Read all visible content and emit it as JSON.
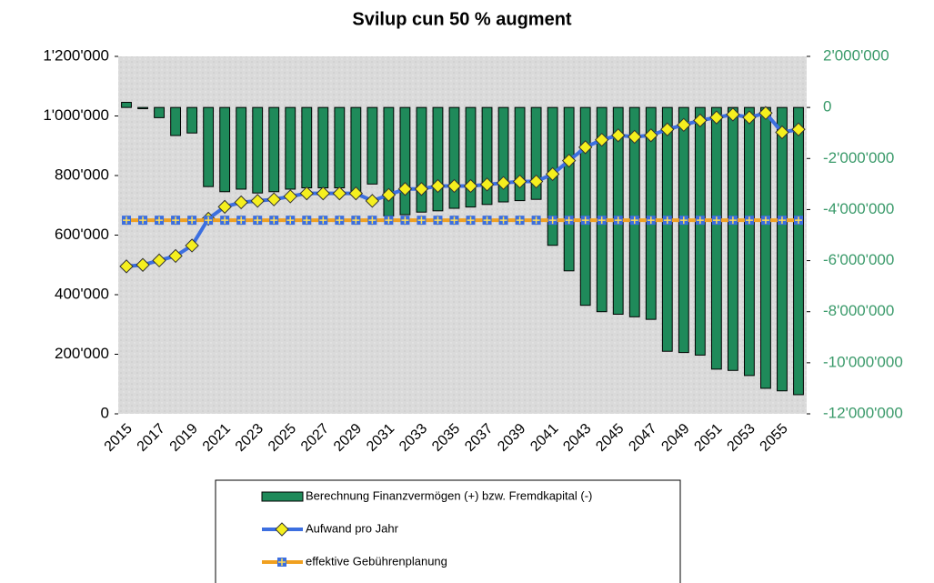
{
  "chart_data": {
    "type": "combo",
    "title": "Svilup cun 50 % augment",
    "categories": [
      "2015",
      null,
      "2017",
      null,
      "2019",
      null,
      "2021",
      null,
      "2023",
      null,
      "2025",
      null,
      "2027",
      null,
      "2029",
      null,
      "2031",
      null,
      "2033",
      null,
      "2035",
      null,
      "2037",
      null,
      "2039",
      null,
      "2041",
      null,
      "2043",
      null,
      "2045",
      null,
      "2047",
      null,
      "2049",
      null,
      "2051",
      null,
      "2053",
      null,
      "2055",
      null
    ],
    "ylim": [
      0,
      1200000
    ],
    "yticks": [
      0,
      {
        "value": 200000,
        "label": "200'000"
      },
      {
        "value": 400000,
        "label": "400'000"
      },
      {
        "value": 600000,
        "label": "600'000"
      },
      {
        "value": 800000,
        "label": "800'000"
      },
      {
        "value": 1000000,
        "label": "1'000'000"
      },
      {
        "value": 1200000,
        "label": "1'200'000"
      }
    ],
    "y2lim": [
      -12000000,
      2000000
    ],
    "y2ticks": [
      {
        "value": -12000000,
        "label": "-12'000'000"
      },
      {
        "value": -10000000,
        "label": "-10'000'000"
      },
      {
        "value": -8000000,
        "label": "-8'000'000"
      },
      {
        "value": -6000000,
        "label": "-6'000'000"
      },
      {
        "value": -4000000,
        "label": "-4'000'000"
      },
      {
        "value": -2000000,
        "label": "-2'000'000"
      },
      0,
      {
        "value": 2000000,
        "label": "2'000'000"
      }
    ],
    "legend": "bottom",
    "series": [
      {
        "name": "Berechnung Finanzvermögen (+) bzw. Fremdkapital (-)",
        "type": "bar",
        "axis": "y2",
        "color": "#1f8a5a",
        "values": [
          200000,
          -50000,
          -400000,
          -1100000,
          -1000000,
          -3100000,
          -3300000,
          -3200000,
          -3350000,
          -3300000,
          -3200000,
          -3150000,
          -3150000,
          -3150000,
          -3350000,
          -3000000,
          -4250000,
          -4200000,
          -4100000,
          -4050000,
          -3950000,
          -3900000,
          -3800000,
          -3700000,
          -3650000,
          -3600000,
          -5400000,
          -6400000,
          -7750000,
          -8000000,
          -8100000,
          -8200000,
          -8300000,
          -9550000,
          -9600000,
          -9700000,
          -10250000,
          -10300000,
          -10500000,
          -11000000,
          -11100000,
          -11250000
        ]
      },
      {
        "name": "Aufwand pro Jahr",
        "type": "line",
        "color": "#3c6fe0",
        "marker_color": "#f5ef1e",
        "values": [
          495000,
          500000,
          515000,
          530000,
          565000,
          655000,
          695000,
          710000,
          715000,
          720000,
          730000,
          740000,
          740000,
          740000,
          740000,
          715000,
          735000,
          755000,
          755000,
          765000,
          765000,
          765000,
          770000,
          775000,
          780000,
          780000,
          805000,
          850000,
          895000,
          920000,
          935000,
          930000,
          935000,
          955000,
          970000,
          985000,
          995000,
          1005000,
          995000,
          1010000,
          945000,
          955000
        ]
      },
      {
        "name": "effektive Gebührenplanung",
        "type": "line",
        "color": "#f0a020",
        "marker_color": "#3c6fe0",
        "values": [
          650000,
          650000,
          650000,
          650000,
          650000,
          650000,
          650000,
          650000,
          650000,
          650000,
          650000,
          650000,
          650000,
          650000,
          650000,
          650000,
          650000,
          650000,
          650000,
          650000,
          650000,
          650000,
          650000,
          650000,
          650000,
          650000,
          650000,
          650000,
          650000,
          650000,
          650000,
          650000,
          650000,
          650000,
          650000,
          650000,
          650000,
          650000,
          650000,
          650000,
          650000,
          650000
        ]
      }
    ]
  }
}
